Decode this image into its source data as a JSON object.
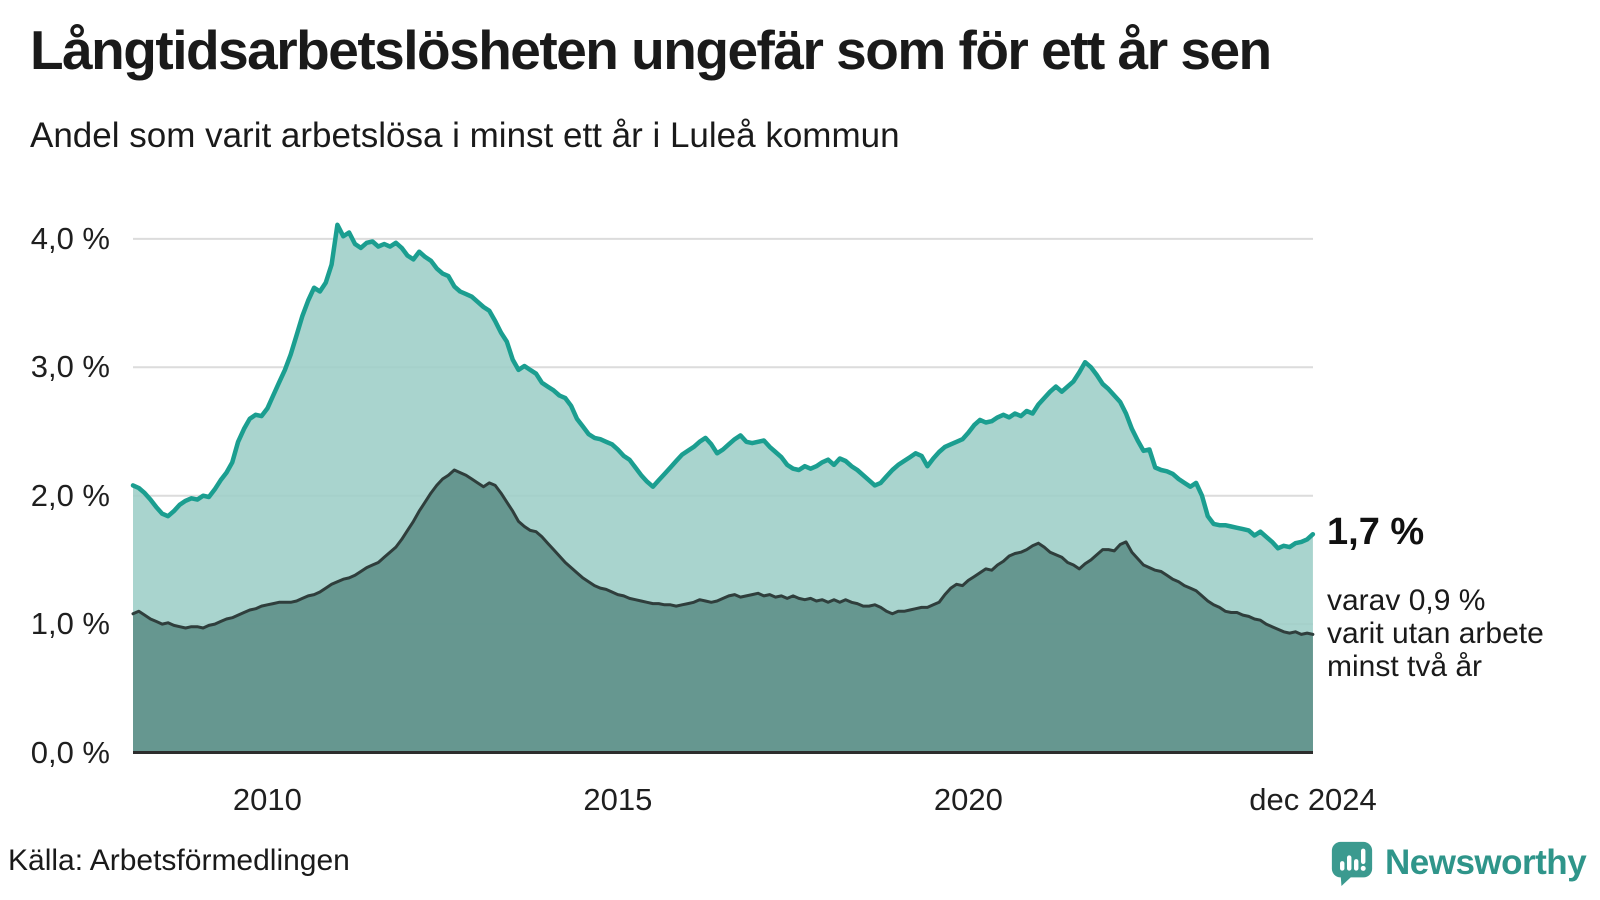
{
  "header": {
    "title": "Långtidsarbetslösheten ungefär som för ett år sen",
    "subtitle": "Andel som varit arbetslösa i minst ett år i Luleå kommun"
  },
  "annotations": {
    "latest_value": "1,7 %",
    "sub_lines": [
      "varav 0,9 %",
      "varit utan arbete",
      "minst två år"
    ]
  },
  "footer": {
    "source": "Källa: Arbetsförmedlingen",
    "brand": "Newsworthy"
  },
  "colors": {
    "series1_line": "#1b9e90",
    "series1_fill": "#9dcec7",
    "series2_line": "#2f3e3c",
    "series2_fill": "#5c8e88",
    "gridline": "#dcdcdc",
    "baseline": "#2d2d2d",
    "text": "#1a1a1a",
    "logo_teal": "#3b9a8f",
    "wordmark_teal": "#2f958a"
  },
  "chart_data": {
    "type": "area",
    "title": "Långtidsarbetslösheten ungefär som för ett år sen",
    "subtitle": "Andel som varit arbetslösa i minst ett år i Luleå kommun",
    "xlabel": "",
    "ylabel": "",
    "grid": "horizontal",
    "legend": "none",
    "xlim": [
      2008.083,
      2024.917
    ],
    "ylim": [
      0,
      4.3
    ],
    "x_start": 2008.083,
    "x_step_years": 0.083333,
    "x_ticks": [
      {
        "label": "2010",
        "year": 2010.0
      },
      {
        "label": "2015",
        "year": 2015.0
      },
      {
        "label": "2020",
        "year": 2020.0
      },
      {
        "label": "dec 2024",
        "year": 2024.917
      }
    ],
    "y_ticks": [
      {
        "label": "0,0 %",
        "value": 0
      },
      {
        "label": "1,0 %",
        "value": 1
      },
      {
        "label": "2,0 %",
        "value": 2
      },
      {
        "label": "3,0 %",
        "value": 3
      },
      {
        "label": "4,0 %",
        "value": 4
      }
    ],
    "unit": "%",
    "series": [
      {
        "name": "minst ett år",
        "end_label": "1,7 %",
        "line_color": "#1b9e90",
        "fill_color": "#9dcec7",
        "values": [
          2.08,
          2.06,
          2.02,
          1.97,
          1.91,
          1.86,
          1.84,
          1.88,
          1.93,
          1.96,
          1.98,
          1.97,
          2.0,
          1.99,
          2.05,
          2.12,
          2.18,
          2.26,
          2.42,
          2.52,
          2.6,
          2.63,
          2.62,
          2.68,
          2.78,
          2.88,
          2.98,
          3.1,
          3.25,
          3.4,
          3.52,
          3.62,
          3.59,
          3.66,
          3.8,
          4.11,
          4.02,
          4.05,
          3.96,
          3.93,
          3.97,
          3.98,
          3.94,
          3.96,
          3.94,
          3.97,
          3.93,
          3.87,
          3.84,
          3.9,
          3.86,
          3.83,
          3.77,
          3.73,
          3.71,
          3.63,
          3.59,
          3.57,
          3.55,
          3.51,
          3.47,
          3.44,
          3.36,
          3.27,
          3.2,
          3.06,
          2.98,
          3.01,
          2.98,
          2.95,
          2.88,
          2.85,
          2.82,
          2.78,
          2.76,
          2.7,
          2.6,
          2.54,
          2.48,
          2.45,
          2.44,
          2.42,
          2.4,
          2.36,
          2.31,
          2.28,
          2.22,
          2.16,
          2.11,
          2.07,
          2.12,
          2.17,
          2.22,
          2.27,
          2.32,
          2.35,
          2.38,
          2.42,
          2.45,
          2.4,
          2.33,
          2.36,
          2.4,
          2.44,
          2.47,
          2.42,
          2.41,
          2.42,
          2.43,
          2.38,
          2.34,
          2.3,
          2.24,
          2.21,
          2.2,
          2.23,
          2.21,
          2.23,
          2.26,
          2.28,
          2.24,
          2.29,
          2.27,
          2.23,
          2.2,
          2.16,
          2.12,
          2.08,
          2.1,
          2.15,
          2.2,
          2.24,
          2.27,
          2.3,
          2.33,
          2.31,
          2.23,
          2.29,
          2.34,
          2.38,
          2.4,
          2.42,
          2.44,
          2.49,
          2.55,
          2.59,
          2.57,
          2.58,
          2.61,
          2.63,
          2.61,
          2.64,
          2.62,
          2.66,
          2.64,
          2.71,
          2.76,
          2.81,
          2.85,
          2.81,
          2.85,
          2.89,
          2.96,
          3.04,
          3.0,
          2.94,
          2.87,
          2.83,
          2.78,
          2.73,
          2.64,
          2.52,
          2.43,
          2.35,
          2.36,
          2.22,
          2.2,
          2.19,
          2.17,
          2.13,
          2.1,
          2.07,
          2.1,
          2.0,
          1.84,
          1.78,
          1.77,
          1.77,
          1.76,
          1.75,
          1.74,
          1.73,
          1.69,
          1.72,
          1.68,
          1.64,
          1.59,
          1.61,
          1.6,
          1.63,
          1.64,
          1.66,
          1.7
        ]
      },
      {
        "name": "minst två år",
        "end_label": "0,9 %",
        "line_color": "#2f3e3c",
        "fill_color": "#5c8e88",
        "values": [
          1.08,
          1.1,
          1.07,
          1.04,
          1.02,
          1.0,
          1.01,
          0.99,
          0.98,
          0.97,
          0.98,
          0.98,
          0.97,
          0.99,
          1.0,
          1.02,
          1.04,
          1.05,
          1.07,
          1.09,
          1.11,
          1.12,
          1.14,
          1.15,
          1.16,
          1.17,
          1.17,
          1.17,
          1.18,
          1.2,
          1.22,
          1.23,
          1.25,
          1.28,
          1.31,
          1.33,
          1.35,
          1.36,
          1.38,
          1.41,
          1.44,
          1.46,
          1.48,
          1.52,
          1.56,
          1.6,
          1.66,
          1.73,
          1.8,
          1.88,
          1.95,
          2.02,
          2.08,
          2.13,
          2.16,
          2.2,
          2.18,
          2.16,
          2.13,
          2.1,
          2.07,
          2.1,
          2.08,
          2.02,
          1.95,
          1.88,
          1.8,
          1.76,
          1.73,
          1.72,
          1.68,
          1.63,
          1.58,
          1.53,
          1.48,
          1.44,
          1.4,
          1.36,
          1.33,
          1.3,
          1.28,
          1.27,
          1.25,
          1.23,
          1.22,
          1.2,
          1.19,
          1.18,
          1.17,
          1.16,
          1.16,
          1.15,
          1.15,
          1.14,
          1.15,
          1.16,
          1.17,
          1.19,
          1.18,
          1.17,
          1.18,
          1.2,
          1.22,
          1.23,
          1.21,
          1.22,
          1.23,
          1.24,
          1.22,
          1.23,
          1.21,
          1.22,
          1.2,
          1.22,
          1.2,
          1.19,
          1.2,
          1.18,
          1.19,
          1.17,
          1.19,
          1.17,
          1.19,
          1.17,
          1.16,
          1.14,
          1.14,
          1.15,
          1.13,
          1.1,
          1.08,
          1.1,
          1.1,
          1.11,
          1.12,
          1.13,
          1.13,
          1.15,
          1.17,
          1.23,
          1.28,
          1.31,
          1.3,
          1.34,
          1.37,
          1.4,
          1.43,
          1.42,
          1.46,
          1.49,
          1.53,
          1.55,
          1.56,
          1.58,
          1.61,
          1.63,
          1.6,
          1.56,
          1.54,
          1.52,
          1.48,
          1.46,
          1.43,
          1.47,
          1.5,
          1.54,
          1.58,
          1.58,
          1.57,
          1.62,
          1.64,
          1.56,
          1.51,
          1.46,
          1.44,
          1.42,
          1.41,
          1.38,
          1.35,
          1.33,
          1.3,
          1.28,
          1.26,
          1.22,
          1.18,
          1.15,
          1.13,
          1.1,
          1.09,
          1.09,
          1.07,
          1.06,
          1.04,
          1.03,
          1.0,
          0.98,
          0.96,
          0.94,
          0.93,
          0.94,
          0.92,
          0.93,
          0.92
        ]
      }
    ]
  }
}
